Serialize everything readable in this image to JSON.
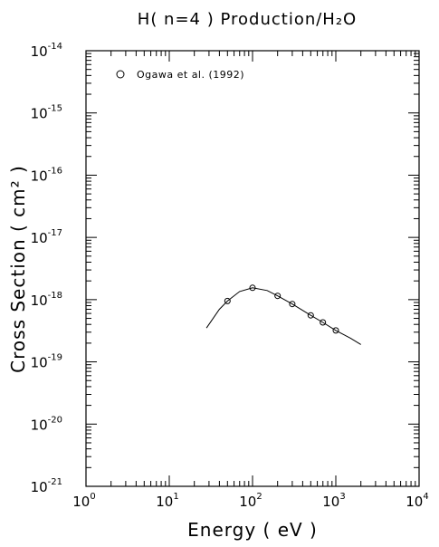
{
  "chart_data": {
    "type": "scatter",
    "title": "H( n=4 ) Production/H₂O",
    "xlabel": "Energy  ( eV )",
    "ylabel": "Cross  Section  ( cm² )",
    "xscale": "log",
    "yscale": "log",
    "xlim": [
      1,
      10000
    ],
    "ylim": [
      1e-21,
      1e-14
    ],
    "grid": false,
    "legend_position": "top-left",
    "x_tick_labels": [
      "10^0",
      "10^1",
      "10^2",
      "10^3",
      "10^4"
    ],
    "y_tick_labels": [
      "10^-21",
      "10^-20",
      "10^-19",
      "10^-18",
      "10^-17",
      "10^-16",
      "10^-15",
      "10^-14"
    ],
    "series": [
      {
        "name": "Ogawa et al. (1992)",
        "marker": "open-circle",
        "x": [
          50,
          100,
          200,
          300,
          500,
          700,
          1000
        ],
        "y": [
          9.5e-19,
          1.55e-18,
          1.15e-18,
          8.5e-19,
          5.6e-19,
          4.3e-19,
          3.2e-19
        ]
      },
      {
        "marker": "line",
        "x": [
          28,
          40,
          50,
          70,
          100,
          150,
          200,
          300,
          500,
          700,
          1000,
          1500,
          2000
        ],
        "y": [
          3.5e-19,
          7e-19,
          9.5e-19,
          1.35e-18,
          1.55e-18,
          1.4e-18,
          1.15e-18,
          8.5e-19,
          5.6e-19,
          4.3e-19,
          3.2e-19,
          2.4e-19,
          1.9e-19
        ]
      }
    ]
  }
}
